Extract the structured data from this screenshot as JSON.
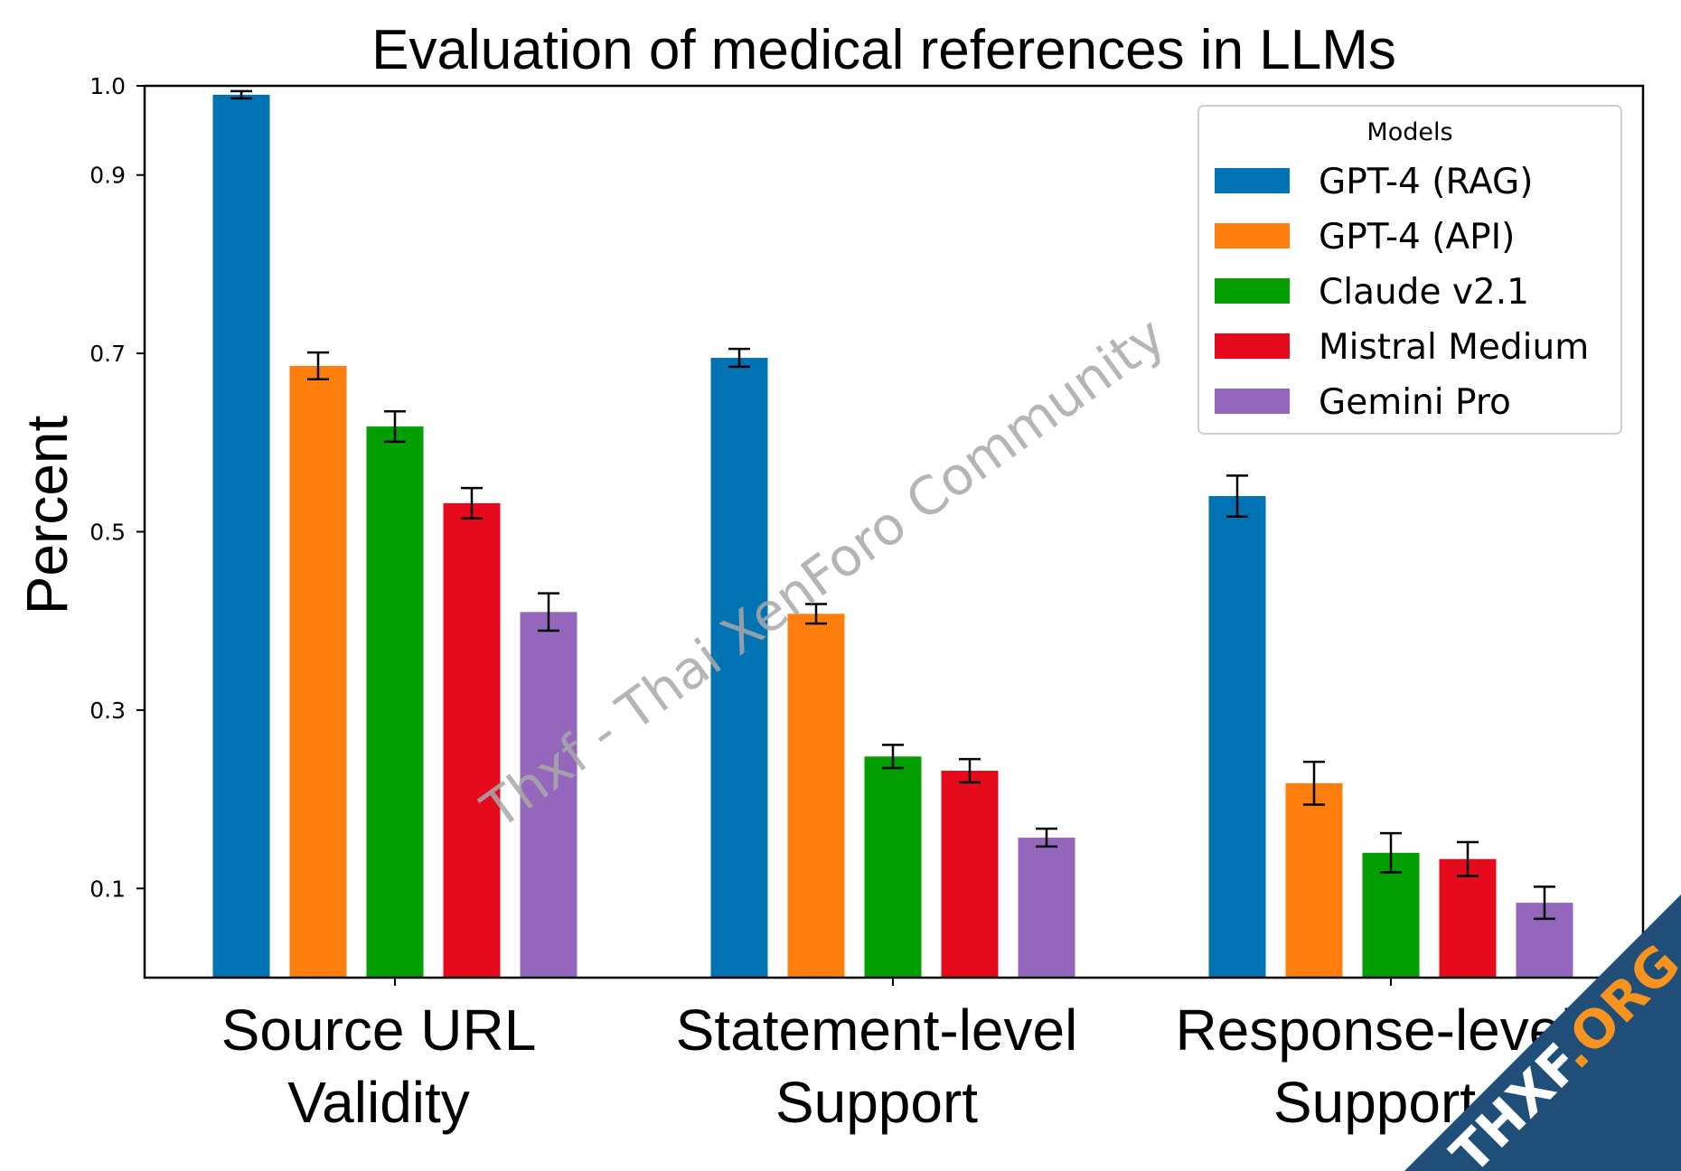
{
  "chart_data": {
    "type": "bar",
    "title": "Evaluation of medical references in LLMs",
    "xlabel": "",
    "ylabel": "Percent",
    "ylim": [
      0,
      1.0
    ],
    "yticks": [
      "0.1",
      "0.3",
      "0.5",
      "0.7",
      "0.9",
      "1.0"
    ],
    "categories": [
      [
        "Source URL",
        "Validity"
      ],
      [
        "Statement-level",
        "Support"
      ],
      [
        "Response-level",
        "Support"
      ]
    ],
    "series": [
      {
        "name": "GPT-4 (RAG)",
        "color": "#0173b2",
        "values": [
          0.99,
          0.695,
          0.54
        ],
        "errors": [
          0.004,
          0.01,
          0.023
        ]
      },
      {
        "name": "GPT-4 (API)",
        "color": "#ff7f0e",
        "values": [
          0.686,
          0.408,
          0.218
        ],
        "errors": [
          0.015,
          0.011,
          0.024
        ]
      },
      {
        "name": "Claude v2.1",
        "color": "#029e02",
        "values": [
          0.618,
          0.248,
          0.14
        ],
        "errors": [
          0.017,
          0.013,
          0.022
        ]
      },
      {
        "name": "Mistral Medium",
        "color": "#e50b1d",
        "values": [
          0.532,
          0.232,
          0.133
        ],
        "errors": [
          0.017,
          0.013,
          0.019
        ]
      },
      {
        "name": "Gemini Pro",
        "color": "#9467bd",
        "values": [
          0.41,
          0.157,
          0.084
        ],
        "errors": [
          0.021,
          0.01,
          0.018
        ]
      }
    ],
    "legend": {
      "title": "Models",
      "placement": "top-right"
    },
    "grid": false
  },
  "watermark": {
    "text": "Thxf - Thai XenForo Community"
  },
  "badge": {
    "part1": "THXF",
    "part2": ".ORG",
    "color": "#1f4e79",
    "accent": "#f7931e"
  }
}
